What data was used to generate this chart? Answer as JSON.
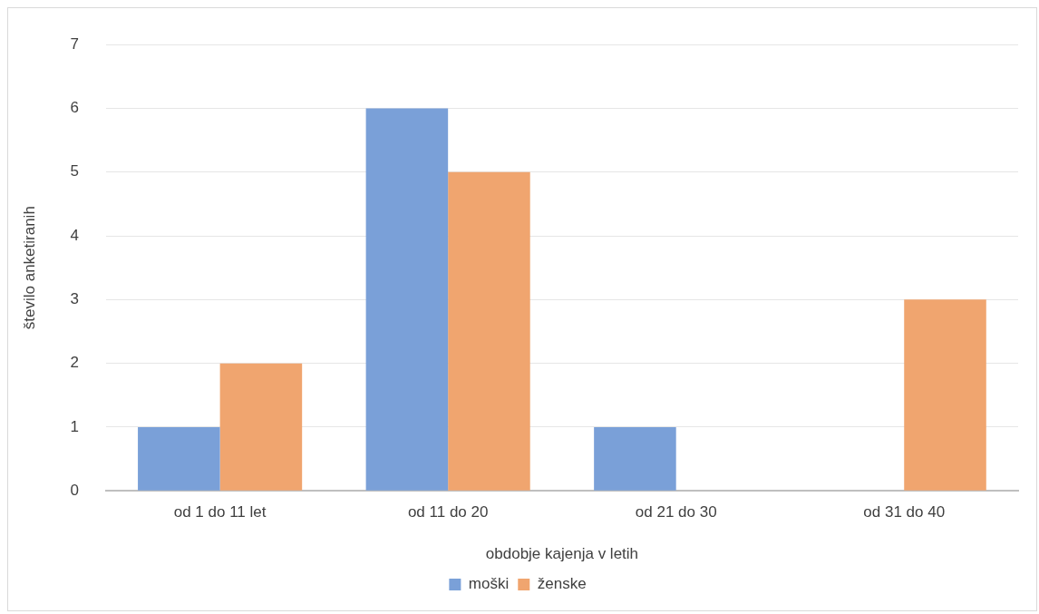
{
  "chart_data": {
    "type": "bar",
    "xlabel": "obdobje kajenja v letih",
    "ylabel": "število anketiranih",
    "categories": [
      "od 1 do 11 let",
      "od 11 do 20",
      "od 21 do 30",
      "od 31 do 40"
    ],
    "series": [
      {
        "name": "moški",
        "color": "#7aa0d8",
        "values": [
          1,
          6,
          1,
          0
        ]
      },
      {
        "name": "ženske",
        "color": "#f0a56f",
        "values": [
          2,
          5,
          0,
          3
        ]
      }
    ],
    "ylim": [
      0,
      7
    ],
    "yticks": [
      0,
      1,
      2,
      3,
      4,
      5,
      6,
      7
    ],
    "grid": "y",
    "legend": "bottom"
  }
}
